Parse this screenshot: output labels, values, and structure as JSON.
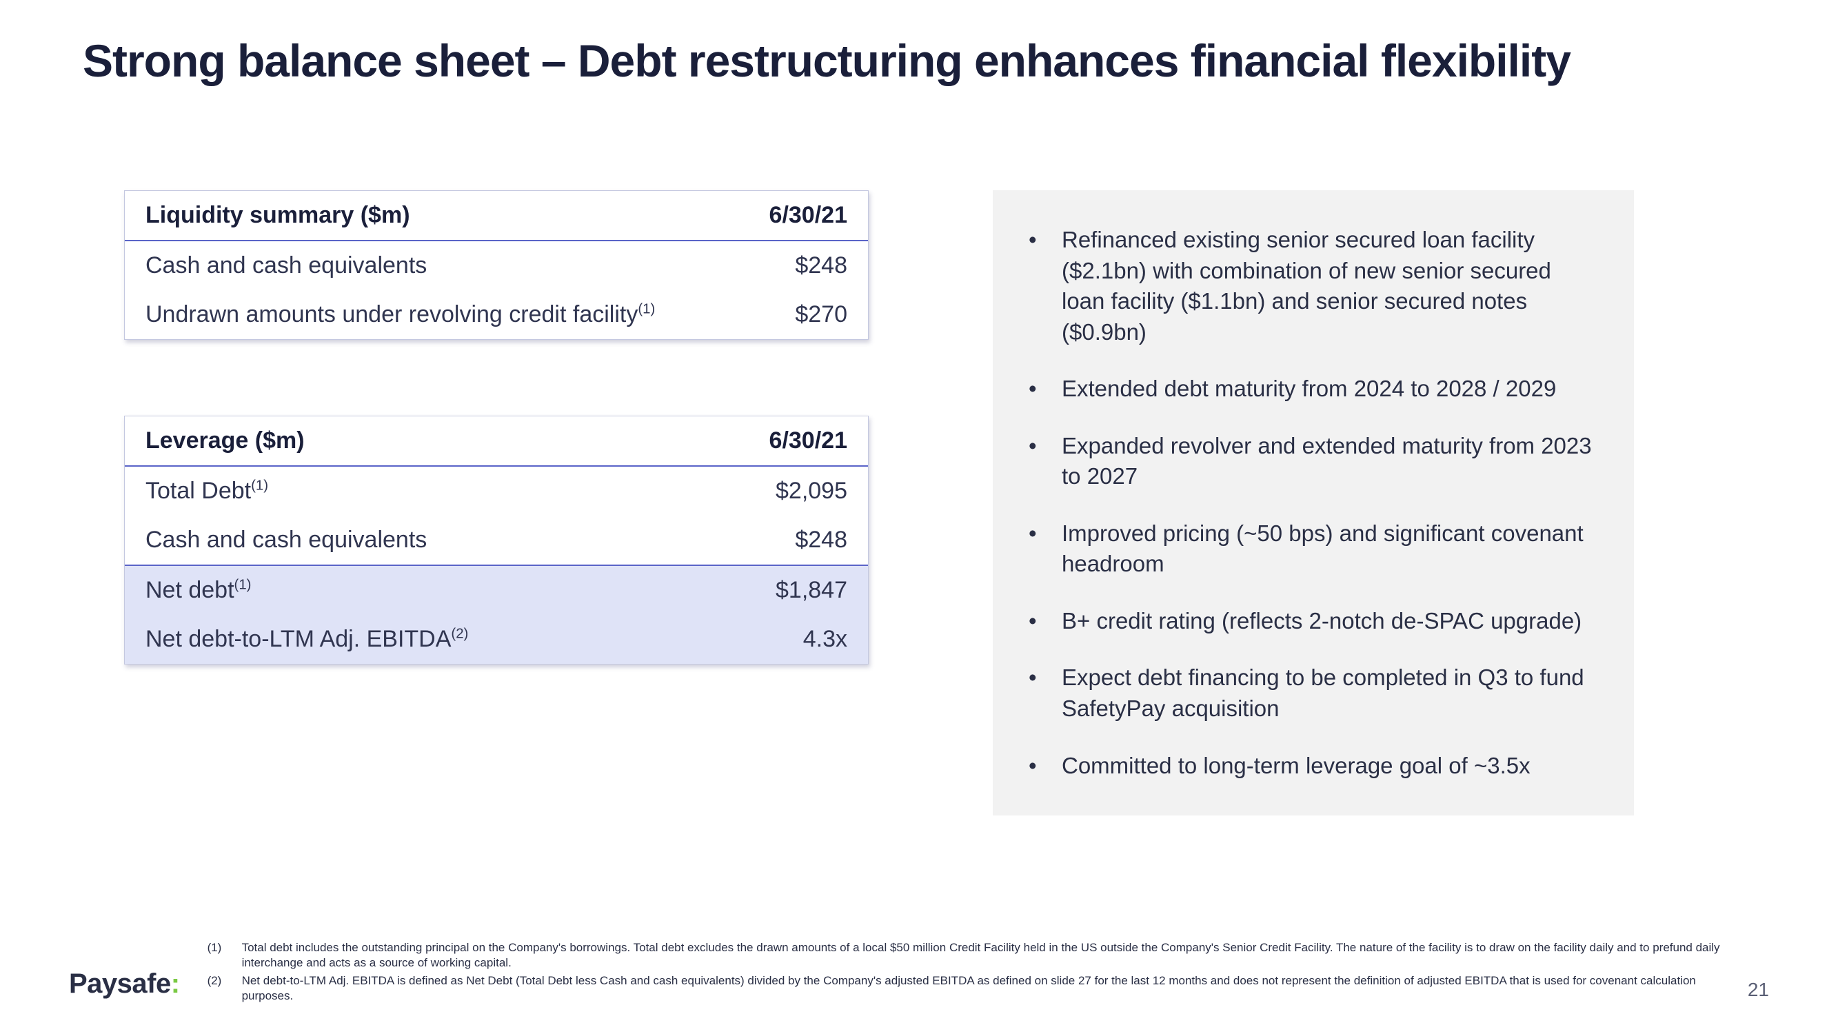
{
  "title": "Strong balance sheet – Debt restructuring enhances financial flexibility",
  "tables": {
    "liquidity": {
      "header_label": "Liquidity summary ($m)",
      "header_value": "6/30/21",
      "rows": [
        {
          "label": "Cash and cash equivalents",
          "sup": "",
          "value": "$248"
        },
        {
          "label": "Undrawn amounts under revolving credit facility",
          "sup": "(1)",
          "value": "$270"
        }
      ]
    },
    "leverage": {
      "header_label": "Leverage ($m)",
      "header_value": "6/30/21",
      "rows": [
        {
          "label": "Total Debt",
          "sup": "(1)",
          "value": "$2,095"
        },
        {
          "label": "Cash and cash equivalents",
          "sup": "",
          "value": "$248"
        },
        {
          "label": "Net debt",
          "sup": "(1)",
          "value": "$1,847"
        },
        {
          "label": "Net debt-to-LTM Adj. EBITDA",
          "sup": "(2)",
          "value": "4.3x"
        }
      ]
    }
  },
  "bullets": [
    "Refinanced existing senior secured loan facility ($2.1bn) with combination of new senior secured loan facility ($1.1bn) and senior secured notes ($0.9bn)",
    "Extended debt maturity from 2024 to 2028 / 2029",
    "Expanded revolver and extended maturity from 2023 to 2027",
    "Improved pricing (~50 bps) and significant covenant headroom",
    "B+ credit rating (reflects 2-notch de-SPAC upgrade)",
    "Expect debt financing to be completed in Q3 to fund SafetyPay acquisition",
    "Committed to long-term leverage goal of ~3.5x"
  ],
  "logo": {
    "text": "Paysafe",
    "colon": ":"
  },
  "footnotes": [
    {
      "num": "(1)",
      "text": "Total debt includes the outstanding principal on the Company's borrowings. Total debt excludes the drawn amounts of a local $50 million Credit Facility held in the US outside the Company's Senior Credit Facility. The nature of the facility is to draw on the facility daily and to prefund daily interchange and acts as a source of working capital."
    },
    {
      "num": "(2)",
      "text": "Net debt-to-LTM Adj. EBITDA is defined as Net Debt (Total Debt less Cash and cash equivalents) divided by the Company's adjusted EBITDA as defined on slide 27 for the last 12 months and does not represent the definition of adjusted EBITDA that is used for covenant calculation purposes."
    }
  ],
  "page_number": "21",
  "colors": {
    "title": "#1a1f3a",
    "accent_border": "#5a64c8",
    "highlight_bg": "#dfe3f7",
    "bullet_bg": "#f2f2f2",
    "logo_colon": "#7ac943"
  }
}
